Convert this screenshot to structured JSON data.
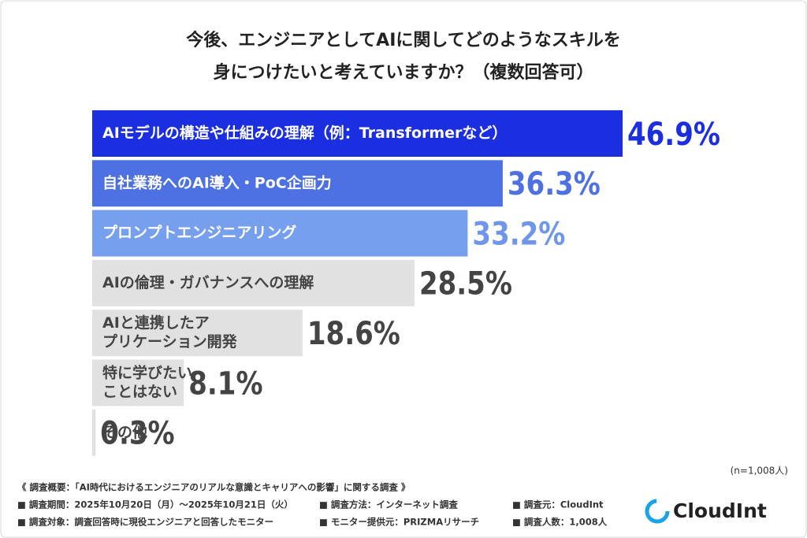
{
  "chart_data": {
    "type": "bar",
    "orientation": "horizontal",
    "title": [
      "今後、エンジニアとしてAIに関してどのようなスキルを",
      "身につけたいと考えていますか？（複数回答可）"
    ],
    "categories": [
      [
        "AIモデルの構造や仕組みの理解（例：Transformerなど）"
      ],
      [
        "自社業務へのAI導入・PoC企画力"
      ],
      [
        "プロンプトエンジニアリング"
      ],
      [
        "AIの倫理・ガバナンスへの理解"
      ],
      [
        "AIと連携したア",
        "プリケーション開発"
      ],
      [
        "特に学びたい",
        "ことはない"
      ],
      [
        "その他"
      ]
    ],
    "values": [
      46.9,
      36.3,
      33.2,
      28.5,
      18.6,
      8.1,
      0.3
    ],
    "value_labels": [
      "46.9%",
      "36.3%",
      "33.2%",
      "28.5%",
      "18.6%",
      "8.1%",
      "0.3%"
    ],
    "colors": [
      "#1b2ee0",
      "#4d70e2",
      "#76a0ee",
      "#e1e1e1",
      "#e1e1e1",
      "#e1e1e1",
      "#e1e1e1"
    ],
    "label_colors": [
      "#1b2ee0",
      "#4d70e2",
      "#6f96ea",
      "#444444",
      "#444444",
      "#444444",
      "#444444"
    ],
    "category_colors": [
      "#ffffff",
      "#ffffff",
      "#ffffff",
      "#444444",
      "#444444",
      "#444444",
      "#444444"
    ],
    "xlim": [
      0,
      50
    ],
    "note": "(n=1,008人)"
  },
  "footer": {
    "heading": "《 調査概要：「AI時代におけるエンジニアのリアルな意識とキャリアへの影響」に関する調査 》",
    "rows": [
      [
        "■ 調査期間：2025年10月20日（月）～2025年10月21日（火）",
        "■ 調査方法：インターネット調査",
        "■ 調査元：CloudInt"
      ],
      [
        "■ 調査対象：調査回答時に現役エンジニアと回答したモニター",
        "■ モニター提供元：PRIZMAリサーチ",
        "■ 調査人数：1,008人"
      ]
    ],
    "logo": "CloudInt"
  }
}
